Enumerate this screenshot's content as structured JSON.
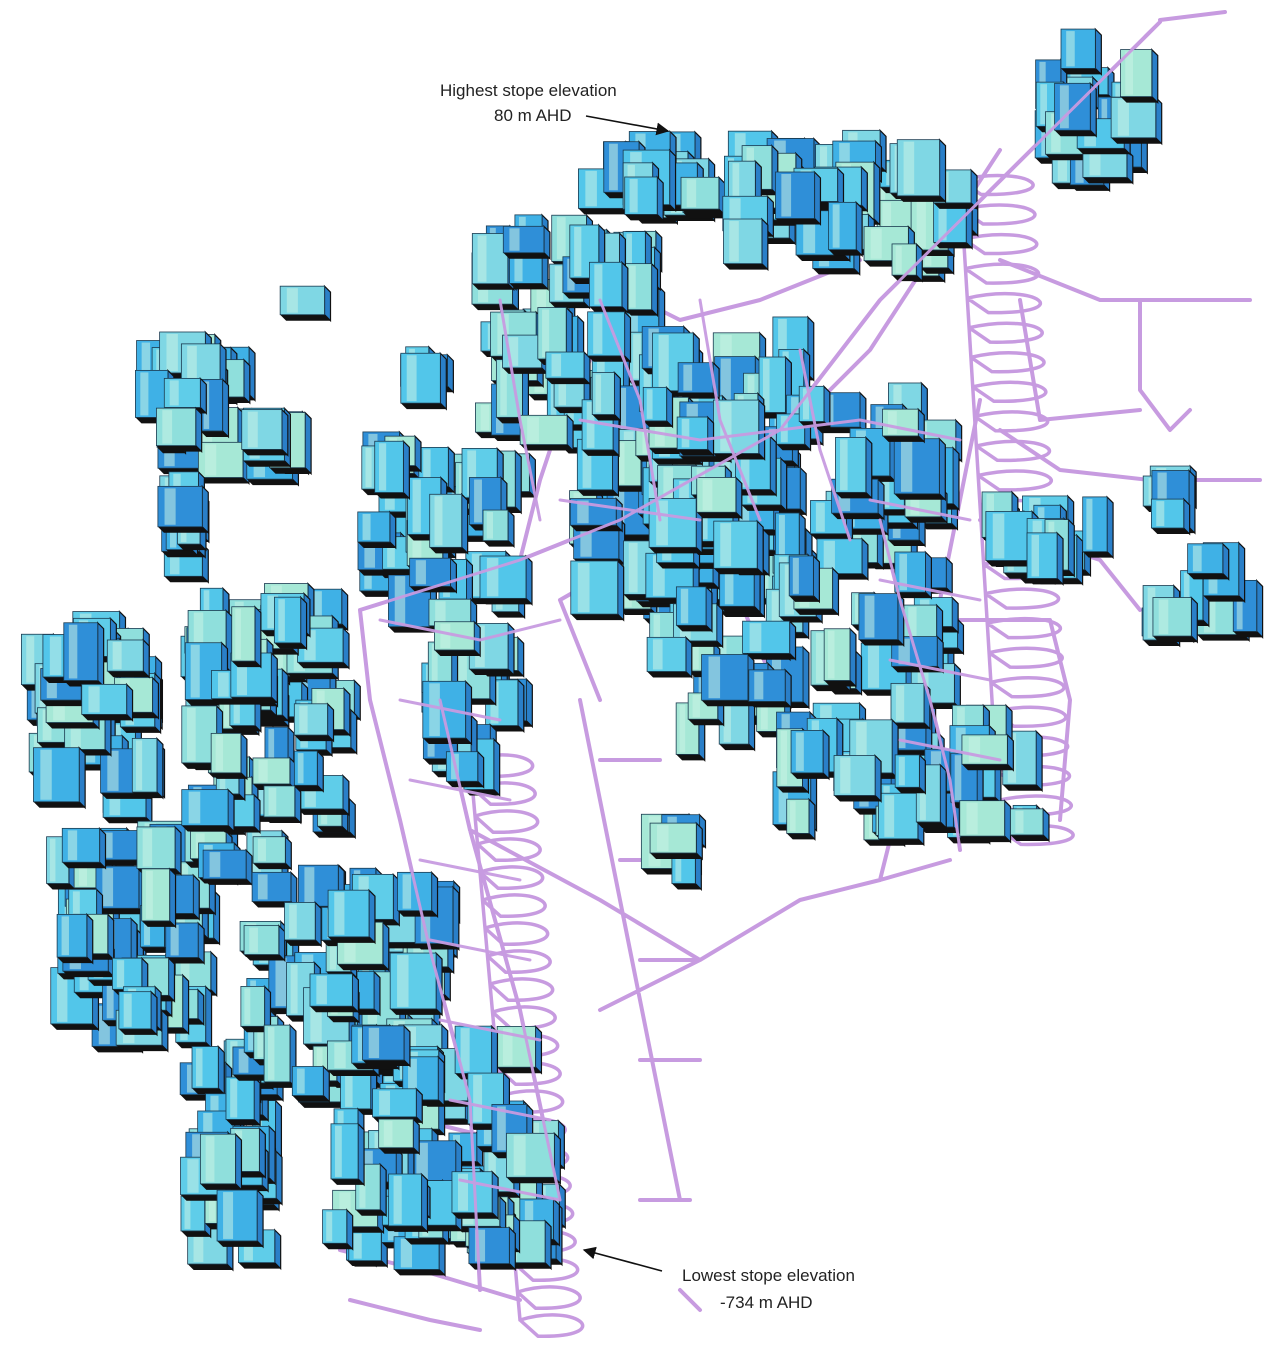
{
  "annotations": {
    "highest": {
      "title": "Highest stope elevation",
      "value": "80 m AHD"
    },
    "lowest": {
      "title": "Lowest stope elevation",
      "value": "-734 m AHD"
    }
  },
  "colors": {
    "stope_light": "#9fe3d2",
    "stope_mid": "#4fc3e8",
    "stope_dark": "#2f8fd8",
    "stope_outline": "#111111",
    "development": "#c79be0",
    "annotation_text": "#222222"
  }
}
